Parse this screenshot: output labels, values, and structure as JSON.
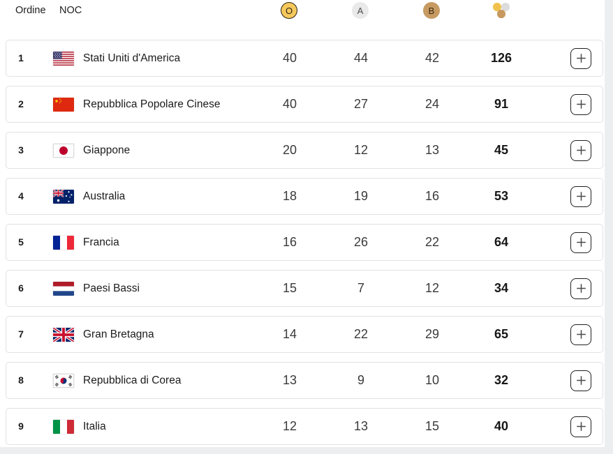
{
  "header": {
    "ordine_label": "Ordine",
    "noc_label": "NOC",
    "gold_letter": "O",
    "silver_letter": "A",
    "bronze_letter": "B"
  },
  "colors": {
    "gold": "#F5C85C",
    "silver": "#E9E9E9",
    "bronze": "#C79A61",
    "gold_dot": "#F2C24E",
    "silver_dot": "#DCDCDC",
    "bronze_dot": "#C7995F"
  },
  "rows": [
    {
      "rank": "1",
      "noc": "Stati Uniti d'America",
      "flag": "us",
      "gold": "40",
      "silver": "44",
      "bronze": "42",
      "total": "126"
    },
    {
      "rank": "2",
      "noc": "Repubblica Popolare Cinese",
      "flag": "cn",
      "gold": "40",
      "silver": "27",
      "bronze": "24",
      "total": "91"
    },
    {
      "rank": "3",
      "noc": "Giappone",
      "flag": "jp",
      "gold": "20",
      "silver": "12",
      "bronze": "13",
      "total": "45"
    },
    {
      "rank": "4",
      "noc": "Australia",
      "flag": "au",
      "gold": "18",
      "silver": "19",
      "bronze": "16",
      "total": "53"
    },
    {
      "rank": "5",
      "noc": "Francia",
      "flag": "fr",
      "gold": "16",
      "silver": "26",
      "bronze": "22",
      "total": "64"
    },
    {
      "rank": "6",
      "noc": "Paesi Bassi",
      "flag": "nl",
      "gold": "15",
      "silver": "7",
      "bronze": "12",
      "total": "34"
    },
    {
      "rank": "7",
      "noc": "Gran Bretagna",
      "flag": "gb",
      "gold": "14",
      "silver": "22",
      "bronze": "29",
      "total": "65"
    },
    {
      "rank": "8",
      "noc": "Repubblica di Corea",
      "flag": "kr",
      "gold": "13",
      "silver": "9",
      "bronze": "10",
      "total": "32"
    },
    {
      "rank": "9",
      "noc": "Italia",
      "flag": "it",
      "gold": "12",
      "silver": "13",
      "bronze": "15",
      "total": "40"
    }
  ]
}
